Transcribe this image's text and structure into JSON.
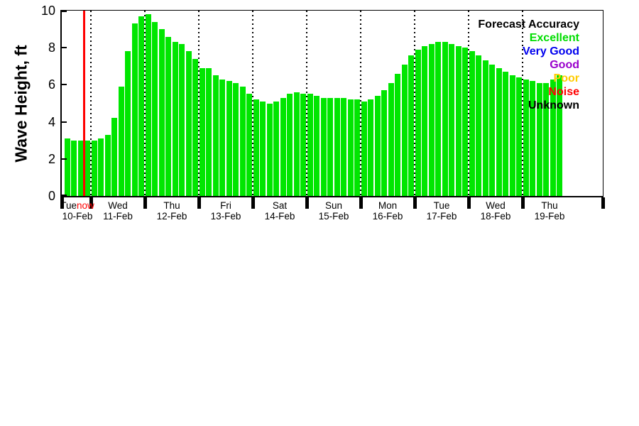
{
  "figure": {
    "now_label": "now"
  },
  "legend": {
    "title": "Forecast Accuracy",
    "entries": [
      {
        "label": "Excellent",
        "color": "#00dd00"
      },
      {
        "label": "Very Good",
        "color": "#0000ee"
      },
      {
        "label": "Good",
        "color": "#9900cc"
      },
      {
        "label": "Poor",
        "color": "#ffcc00"
      },
      {
        "label": "Noise",
        "color": "#ff0000"
      },
      {
        "label": "Unknown",
        "color": "#000000"
      }
    ]
  },
  "chart_data": {
    "type": "bar",
    "title": "",
    "ylabel": "Wave Height, ft",
    "xlabel": "",
    "ylim": [
      0,
      10
    ],
    "yticks": [
      0,
      2,
      4,
      6,
      8,
      10
    ],
    "grid": "vertical-dotted-at-day-boundaries",
    "legend_position": "top-right-inside",
    "bar_color": "#00e600",
    "bar_series_accuracy": "Excellent",
    "now_line_color": "#ff0000",
    "now_after_bar_index": 3,
    "days": [
      {
        "day": "Tue",
        "date": "10-Feb",
        "slots": 4
      },
      {
        "day": "Wed",
        "date": "11-Feb",
        "slots": 8
      },
      {
        "day": "Thu",
        "date": "12-Feb",
        "slots": 8
      },
      {
        "day": "Fri",
        "date": "13-Feb",
        "slots": 8
      },
      {
        "day": "Sat",
        "date": "14-Feb",
        "slots": 8
      },
      {
        "day": "Sun",
        "date": "15-Feb",
        "slots": 8
      },
      {
        "day": "Mon",
        "date": "16-Feb",
        "slots": 8
      },
      {
        "day": "Tue",
        "date": "17-Feb",
        "slots": 8
      },
      {
        "day": "Wed",
        "date": "18-Feb",
        "slots": 8
      },
      {
        "day": "Thu",
        "date": "19-Feb",
        "slots": 8
      }
    ],
    "values": [
      3.1,
      3.0,
      3.0,
      3.0,
      3.0,
      3.1,
      3.3,
      4.2,
      5.9,
      7.8,
      9.3,
      9.7,
      9.8,
      9.4,
      9.0,
      8.6,
      8.3,
      8.2,
      7.8,
      7.4,
      6.9,
      6.9,
      6.5,
      6.3,
      6.2,
      6.1,
      5.9,
      5.5,
      5.2,
      5.1,
      5.0,
      5.1,
      5.3,
      5.5,
      5.6,
      5.5,
      5.5,
      5.4,
      5.3,
      5.3,
      5.3,
      5.3,
      5.2,
      5.2,
      5.1,
      5.2,
      5.4,
      5.7,
      6.1,
      6.6,
      7.1,
      7.6,
      7.9,
      8.1,
      8.2,
      8.3,
      8.3,
      8.2,
      8.1,
      8.0,
      7.8,
      7.6,
      7.3,
      7.1,
      6.9,
      6.7,
      6.5,
      6.4,
      6.3,
      6.2,
      6.1,
      6.1,
      6.3,
      6.5
    ]
  }
}
